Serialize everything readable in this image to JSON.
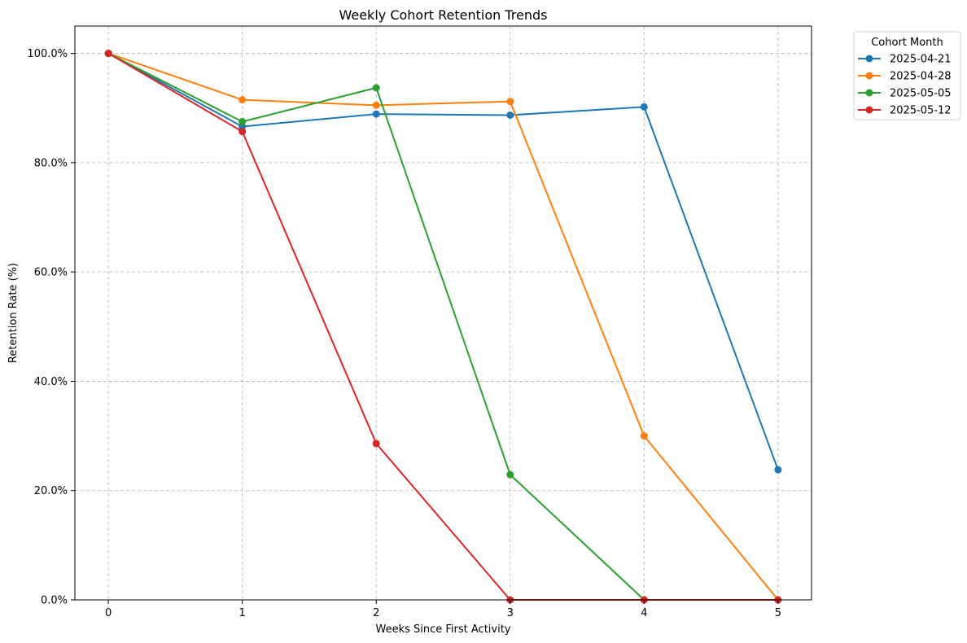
{
  "chart_data": {
    "type": "line",
    "title": "Weekly Cohort Retention Trends",
    "xlabel": "Weeks Since First Activity",
    "ylabel": "Retention Rate (%)",
    "x": [
      0,
      1,
      2,
      3,
      4,
      5
    ],
    "x_tick_labels": [
      "0",
      "1",
      "2",
      "3",
      "4",
      "5"
    ],
    "xlim": [
      -0.25,
      5.25
    ],
    "ylim": [
      0,
      105
    ],
    "y_ticks": [
      0,
      20,
      40,
      60,
      80,
      100
    ],
    "y_tick_labels": [
      "0.0%",
      "20.0%",
      "40.0%",
      "60.0%",
      "80.0%",
      "100.0%"
    ],
    "grid": true,
    "legend": {
      "title": "Cohort Month",
      "placement": "outside upper right"
    },
    "series": [
      {
        "name": "2025-04-21",
        "color": "#1f77b4",
        "values": [
          100,
          86.6,
          88.9,
          88.7,
          90.2,
          23.8
        ]
      },
      {
        "name": "2025-04-28",
        "color": "#ff7f0e",
        "values": [
          100,
          91.5,
          90.5,
          91.2,
          30.0,
          0
        ]
      },
      {
        "name": "2025-05-05",
        "color": "#2ca02c",
        "values": [
          100,
          87.5,
          93.7,
          22.9,
          0,
          0
        ]
      },
      {
        "name": "2025-05-12",
        "color": "#d62728",
        "values": [
          100,
          85.7,
          28.6,
          0,
          0,
          0
        ]
      }
    ]
  }
}
